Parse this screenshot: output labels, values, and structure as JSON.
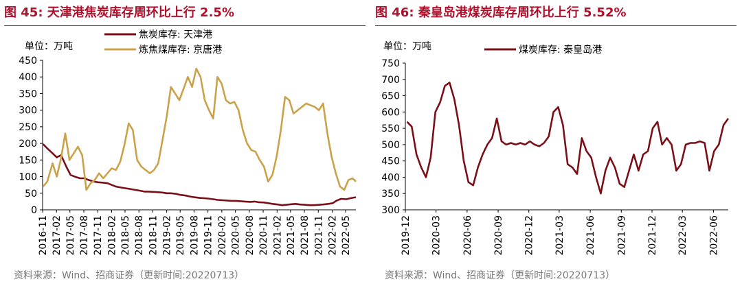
{
  "colors": {
    "title": "#b0102b",
    "series_dark": "#7a0f17",
    "series_gold": "#c9a24a"
  },
  "source_note": "资料来源：Wind、招商证券（更新时间:20220713）",
  "chart_data": [
    {
      "type": "line",
      "title_prefix": "图 45:",
      "title": "天津港焦炭库存周环比上行 2.5%",
      "unit_label": "单位：万吨",
      "ylim": [
        0,
        450
      ],
      "yticks": [
        0,
        50,
        100,
        150,
        200,
        250,
        300,
        350,
        400,
        450
      ],
      "x_tick_labels": [
        "2016-11",
        "2017-02",
        "2017-05",
        "2017-08",
        "2017-11",
        "2018-02",
        "2018-05",
        "2018-08",
        "2018-11",
        "2019-02",
        "2019-05",
        "2019-08",
        "2019-11",
        "2020-02",
        "2020-05",
        "2020-08",
        "2020-11",
        "2021-02",
        "2021-05",
        "2021-08",
        "2021-11",
        "2022-02",
        "2022-05"
      ],
      "x_domain": [
        "2016-11-01",
        "2022-07-08"
      ],
      "grid": false,
      "legend_position": "top",
      "series": [
        {
          "name": "焦炭库存: 天津港",
          "color": "#7a0f17",
          "points": [
            [
              "2016-11-04",
              198
            ],
            [
              "2016-12-02",
              185
            ],
            [
              "2017-01-06",
              170
            ],
            [
              "2017-02-03",
              158
            ],
            [
              "2017-03-03",
              165
            ],
            [
              "2017-04-07",
              130
            ],
            [
              "2017-05-05",
              105
            ],
            [
              "2017-06-02",
              100
            ],
            [
              "2017-07-07",
              95
            ],
            [
              "2017-08-04",
              95
            ],
            [
              "2017-09-01",
              90
            ],
            [
              "2017-10-06",
              85
            ],
            [
              "2017-11-03",
              83
            ],
            [
              "2017-12-01",
              82
            ],
            [
              "2018-01-05",
              80
            ],
            [
              "2018-02-02",
              75
            ],
            [
              "2018-03-02",
              70
            ],
            [
              "2018-04-06",
              67
            ],
            [
              "2018-05-04",
              65
            ],
            [
              "2018-06-01",
              63
            ],
            [
              "2018-07-06",
              60
            ],
            [
              "2018-08-03",
              58
            ],
            [
              "2018-09-07",
              55
            ],
            [
              "2018-10-05",
              55
            ],
            [
              "2018-11-02",
              54
            ],
            [
              "2018-12-07",
              53
            ],
            [
              "2019-01-04",
              52
            ],
            [
              "2019-02-01",
              50
            ],
            [
              "2019-03-01",
              50
            ],
            [
              "2019-04-05",
              48
            ],
            [
              "2019-05-03",
              45
            ],
            [
              "2019-06-07",
              43
            ],
            [
              "2019-07-05",
              40
            ],
            [
              "2019-08-02",
              38
            ],
            [
              "2019-09-06",
              36
            ],
            [
              "2019-10-04",
              35
            ],
            [
              "2019-11-01",
              34
            ],
            [
              "2019-12-06",
              32
            ],
            [
              "2020-01-03",
              30
            ],
            [
              "2020-02-07",
              29
            ],
            [
              "2020-03-06",
              28
            ],
            [
              "2020-04-03",
              27
            ],
            [
              "2020-05-01",
              27
            ],
            [
              "2020-06-05",
              26
            ],
            [
              "2020-07-03",
              25
            ],
            [
              "2020-08-07",
              24
            ],
            [
              "2020-09-04",
              25
            ],
            [
              "2020-10-02",
              23
            ],
            [
              "2020-11-06",
              22
            ],
            [
              "2020-12-04",
              20
            ],
            [
              "2021-01-01",
              18
            ],
            [
              "2021-02-05",
              16
            ],
            [
              "2021-03-05",
              14
            ],
            [
              "2021-04-02",
              15
            ],
            [
              "2021-05-07",
              17
            ],
            [
              "2021-06-04",
              18
            ],
            [
              "2021-07-02",
              16
            ],
            [
              "2021-08-06",
              15
            ],
            [
              "2021-09-03",
              14
            ],
            [
              "2021-10-01",
              14
            ],
            [
              "2021-11-05",
              15
            ],
            [
              "2021-12-03",
              16
            ],
            [
              "2022-01-07",
              18
            ],
            [
              "2022-02-04",
              20
            ],
            [
              "2022-03-04",
              28
            ],
            [
              "2022-04-01",
              33
            ],
            [
              "2022-05-06",
              32
            ],
            [
              "2022-06-03",
              35
            ],
            [
              "2022-07-08",
              38
            ]
          ]
        },
        {
          "name": "炼焦煤库存: 京唐港",
          "color": "#c9a24a",
          "points": [
            [
              "2016-11-04",
              70
            ],
            [
              "2016-12-02",
              85
            ],
            [
              "2017-01-06",
              140
            ],
            [
              "2017-02-03",
              100
            ],
            [
              "2017-03-03",
              155
            ],
            [
              "2017-03-31",
              230
            ],
            [
              "2017-04-28",
              150
            ],
            [
              "2017-05-26",
              170
            ],
            [
              "2017-06-23",
              190
            ],
            [
              "2017-07-21",
              165
            ],
            [
              "2017-08-18",
              60
            ],
            [
              "2017-09-15",
              80
            ],
            [
              "2017-10-13",
              90
            ],
            [
              "2017-11-10",
              110
            ],
            [
              "2017-12-08",
              95
            ],
            [
              "2018-01-05",
              110
            ],
            [
              "2018-02-02",
              125
            ],
            [
              "2018-03-02",
              120
            ],
            [
              "2018-03-30",
              145
            ],
            [
              "2018-04-27",
              195
            ],
            [
              "2018-05-25",
              260
            ],
            [
              "2018-06-22",
              240
            ],
            [
              "2018-07-20",
              150
            ],
            [
              "2018-08-17",
              130
            ],
            [
              "2018-09-14",
              120
            ],
            [
              "2018-10-12",
              110
            ],
            [
              "2018-11-09",
              120
            ],
            [
              "2018-12-07",
              140
            ],
            [
              "2019-01-04",
              210
            ],
            [
              "2019-02-01",
              280
            ],
            [
              "2019-03-01",
              370
            ],
            [
              "2019-03-29",
              350
            ],
            [
              "2019-04-26",
              330
            ],
            [
              "2019-05-24",
              365
            ],
            [
              "2019-06-21",
              400
            ],
            [
              "2019-07-19",
              370
            ],
            [
              "2019-08-16",
              425
            ],
            [
              "2019-09-13",
              400
            ],
            [
              "2019-10-11",
              330
            ],
            [
              "2019-11-08",
              300
            ],
            [
              "2019-12-06",
              275
            ],
            [
              "2020-01-03",
              400
            ],
            [
              "2020-01-31",
              380
            ],
            [
              "2020-02-28",
              330
            ],
            [
              "2020-03-27",
              320
            ],
            [
              "2020-04-24",
              325
            ],
            [
              "2020-05-22",
              300
            ],
            [
              "2020-06-19",
              240
            ],
            [
              "2020-07-17",
              200
            ],
            [
              "2020-08-14",
              180
            ],
            [
              "2020-09-11",
              175
            ],
            [
              "2020-10-09",
              150
            ],
            [
              "2020-11-06",
              130
            ],
            [
              "2020-12-04",
              85
            ],
            [
              "2021-01-01",
              105
            ],
            [
              "2021-01-29",
              160
            ],
            [
              "2021-02-26",
              240
            ],
            [
              "2021-03-26",
              340
            ],
            [
              "2021-04-23",
              330
            ],
            [
              "2021-05-21",
              290
            ],
            [
              "2021-06-18",
              300
            ],
            [
              "2021-07-16",
              310
            ],
            [
              "2021-08-13",
              320
            ],
            [
              "2021-09-10",
              315
            ],
            [
              "2021-10-08",
              310
            ],
            [
              "2021-11-05",
              300
            ],
            [
              "2021-12-03",
              320
            ],
            [
              "2021-12-31",
              230
            ],
            [
              "2022-01-28",
              160
            ],
            [
              "2022-02-25",
              110
            ],
            [
              "2022-03-25",
              70
            ],
            [
              "2022-04-22",
              60
            ],
            [
              "2022-05-20",
              90
            ],
            [
              "2022-06-17",
              95
            ],
            [
              "2022-07-08",
              85
            ]
          ]
        }
      ]
    },
    {
      "type": "line",
      "title_prefix": "图 46:",
      "title": "秦皇岛港煤炭库存周环比上行 5.52%",
      "unit_label": "单位：万吨",
      "ylim": [
        300,
        750
      ],
      "yticks": [
        300,
        350,
        400,
        450,
        500,
        550,
        600,
        650,
        700,
        750
      ],
      "x_tick_labels": [
        "2019-12",
        "2020-03",
        "2020-06",
        "2020-09",
        "2020-12",
        "2021-03",
        "2021-06",
        "2021-09",
        "2021-12",
        "2022-03",
        "2022-06"
      ],
      "x_domain": [
        "2019-12-01",
        "2022-07-15"
      ],
      "grid": false,
      "legend_position": "top",
      "series": [
        {
          "name": "煤炭库存: 秦皇岛港",
          "color": "#7a0f17",
          "points": [
            [
              "2019-12-06",
              570
            ],
            [
              "2019-12-20",
              555
            ],
            [
              "2020-01-03",
              470
            ],
            [
              "2020-01-17",
              430
            ],
            [
              "2020-01-31",
              400
            ],
            [
              "2020-02-14",
              460
            ],
            [
              "2020-02-28",
              600
            ],
            [
              "2020-03-13",
              630
            ],
            [
              "2020-03-27",
              680
            ],
            [
              "2020-04-10",
              690
            ],
            [
              "2020-04-24",
              640
            ],
            [
              "2020-05-08",
              560
            ],
            [
              "2020-05-22",
              450
            ],
            [
              "2020-06-05",
              385
            ],
            [
              "2020-06-19",
              375
            ],
            [
              "2020-07-03",
              430
            ],
            [
              "2020-07-17",
              470
            ],
            [
              "2020-07-31",
              500
            ],
            [
              "2020-08-14",
              520
            ],
            [
              "2020-08-28",
              580
            ],
            [
              "2020-09-11",
              510
            ],
            [
              "2020-09-25",
              500
            ],
            [
              "2020-10-09",
              505
            ],
            [
              "2020-10-23",
              500
            ],
            [
              "2020-11-06",
              505
            ],
            [
              "2020-11-20",
              500
            ],
            [
              "2020-12-04",
              510
            ],
            [
              "2020-12-18",
              500
            ],
            [
              "2021-01-01",
              495
            ],
            [
              "2021-01-15",
              505
            ],
            [
              "2021-01-29",
              525
            ],
            [
              "2021-02-12",
              600
            ],
            [
              "2021-02-26",
              615
            ],
            [
              "2021-03-12",
              560
            ],
            [
              "2021-03-26",
              440
            ],
            [
              "2021-04-09",
              430
            ],
            [
              "2021-04-23",
              410
            ],
            [
              "2021-05-07",
              520
            ],
            [
              "2021-05-21",
              480
            ],
            [
              "2021-06-04",
              460
            ],
            [
              "2021-06-18",
              400
            ],
            [
              "2021-07-02",
              350
            ],
            [
              "2021-07-16",
              420
            ],
            [
              "2021-07-30",
              460
            ],
            [
              "2021-08-13",
              430
            ],
            [
              "2021-08-27",
              380
            ],
            [
              "2021-09-10",
              370
            ],
            [
              "2021-09-24",
              420
            ],
            [
              "2021-10-08",
              470
            ],
            [
              "2021-10-22",
              420
            ],
            [
              "2021-11-05",
              470
            ],
            [
              "2021-11-19",
              480
            ],
            [
              "2021-12-03",
              550
            ],
            [
              "2021-12-17",
              570
            ],
            [
              "2021-12-31",
              500
            ],
            [
              "2022-01-14",
              520
            ],
            [
              "2022-01-28",
              500
            ],
            [
              "2022-02-11",
              420
            ],
            [
              "2022-02-25",
              440
            ],
            [
              "2022-03-11",
              500
            ],
            [
              "2022-03-25",
              505
            ],
            [
              "2022-04-08",
              505
            ],
            [
              "2022-04-22",
              510
            ],
            [
              "2022-05-06",
              505
            ],
            [
              "2022-05-20",
              420
            ],
            [
              "2022-06-03",
              480
            ],
            [
              "2022-06-17",
              500
            ],
            [
              "2022-07-01",
              560
            ],
            [
              "2022-07-15",
              580
            ]
          ]
        }
      ]
    }
  ]
}
